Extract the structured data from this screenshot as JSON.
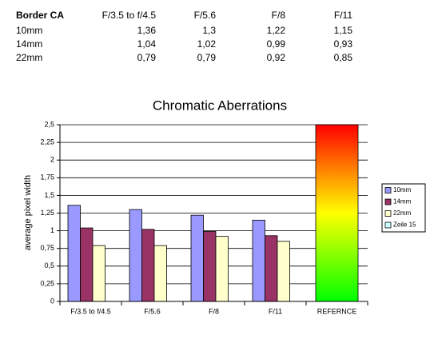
{
  "table": {
    "header": [
      "Border CA",
      "F/3.5 to f/4.5",
      "F/5.6",
      "F/8",
      "F/11"
    ],
    "rows": [
      [
        "10mm",
        "1,36",
        "1,3",
        "1,22",
        "1,15"
      ],
      [
        "14mm",
        "1,04",
        "1,02",
        "0,99",
        "0,93"
      ],
      [
        "22mm",
        "0,79",
        "0,79",
        "0,92",
        "0,85"
      ]
    ]
  },
  "chart_data": {
    "type": "bar",
    "title": "Chromatic Aberrations",
    "y_label": "average pixel width",
    "categories": [
      "F/3.5 to f/4.5",
      "F/5.6",
      "F/8",
      "F/11",
      "REFERNCE"
    ],
    "series": [
      {
        "name": "10mm",
        "color": "#9999ff",
        "values": [
          1.36,
          1.3,
          1.22,
          1.15,
          null
        ]
      },
      {
        "name": "14mm",
        "color": "#993366",
        "values": [
          1.04,
          1.02,
          0.99,
          0.93,
          null
        ]
      },
      {
        "name": "22mm",
        "color": "#ffffcc",
        "values": [
          0.79,
          0.79,
          0.92,
          0.85,
          null
        ]
      },
      {
        "name": "Zeile 15",
        "color": "#ccffff",
        "gradient": [
          "#ff0000",
          "#ffff00",
          "#00ff00"
        ],
        "values": [
          null,
          null,
          null,
          null,
          2.5
        ]
      }
    ],
    "ylim": [
      0,
      2.5
    ],
    "yticks": [
      0,
      {
        "value": 0.25,
        "label": "0,25"
      },
      {
        "value": 0.5,
        "label": "0,5"
      },
      {
        "value": 0.75,
        "label": "0,75"
      },
      1,
      {
        "value": 1.25,
        "label": "1,25"
      },
      {
        "value": 1.5,
        "label": "1,5"
      },
      {
        "value": 1.75,
        "label": "1,75"
      },
      2,
      {
        "value": 2.25,
        "label": "2,25"
      },
      {
        "value": 2.5,
        "label": "2,5"
      }
    ],
    "grid": true,
    "legend": "right"
  }
}
